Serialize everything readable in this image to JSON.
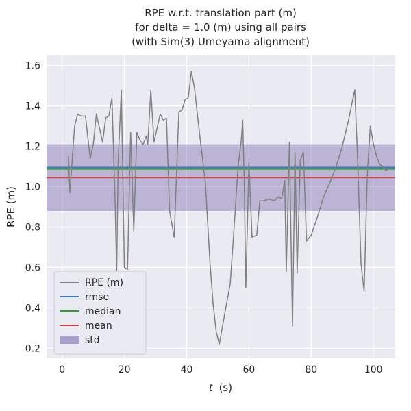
{
  "chart_data": {
    "type": "line",
    "title": "RPE w.r.t. translation part (m)\nfor delta = 1.0 (m) using all pairs\n(with Sim(3) Umeyama alignment)",
    "title_lines": [
      "RPE w.r.t. translation part (m)",
      "for delta = 1.0 (m) using all pairs",
      "(with Sim(3) Umeyama alignment)"
    ],
    "xlabel": "t (s)",
    "xlabel_parts": {
      "italic": "t",
      "rest": "(s)"
    },
    "ylabel": "RPE (m)",
    "xlim": [
      -5,
      107
    ],
    "ylim": [
      0.15,
      1.65
    ],
    "xticks": [
      0,
      20,
      40,
      60,
      80,
      100
    ],
    "yticks": [
      0.2,
      0.4,
      0.6,
      0.8,
      1.0,
      1.2,
      1.4,
      1.6
    ],
    "grid": true,
    "legend_position": "lower left",
    "colors": {
      "axes_bg": "#eaeaf2",
      "grid": "#ffffff",
      "text": "#262626"
    },
    "series": [
      {
        "name": "RPE (m)",
        "color": "#808080",
        "points": [
          [
            2.0,
            1.15
          ],
          [
            2.5,
            0.97
          ],
          [
            4,
            1.3
          ],
          [
            5,
            1.36
          ],
          [
            6,
            1.35
          ],
          [
            7.5,
            1.35
          ],
          [
            9,
            1.14
          ],
          [
            10,
            1.21
          ],
          [
            11,
            1.36
          ],
          [
            12,
            1.29
          ],
          [
            13,
            1.22
          ],
          [
            14,
            1.34
          ],
          [
            15,
            1.35
          ],
          [
            16,
            1.44
          ],
          [
            17,
            0.94
          ],
          [
            17.5,
            0.57
          ],
          [
            18,
            1.12
          ],
          [
            19,
            1.48
          ],
          [
            20,
            0.6
          ],
          [
            21,
            0.59
          ],
          [
            22,
            1.27
          ],
          [
            23,
            0.78
          ],
          [
            24,
            1.27
          ],
          [
            25,
            1.23
          ],
          [
            26,
            1.21
          ],
          [
            27,
            1.25
          ],
          [
            27.5,
            1.21
          ],
          [
            28.5,
            1.48
          ],
          [
            29.5,
            1.22
          ],
          [
            30.5,
            1.29
          ],
          [
            31.5,
            1.36
          ],
          [
            32.5,
            1.33
          ],
          [
            33.5,
            1.34
          ],
          [
            34.5,
            0.88
          ],
          [
            36,
            0.75
          ],
          [
            37.5,
            1.37
          ],
          [
            38.5,
            1.38
          ],
          [
            39.5,
            1.43
          ],
          [
            40.5,
            1.44
          ],
          [
            41.5,
            1.57
          ],
          [
            42.5,
            1.49
          ],
          [
            44,
            1.28
          ],
          [
            46,
            1.02
          ],
          [
            47.5,
            0.62
          ],
          [
            48.5,
            0.42
          ],
          [
            49.5,
            0.28
          ],
          [
            50.5,
            0.22
          ],
          [
            52,
            0.35
          ],
          [
            54,
            0.52
          ],
          [
            55.5,
            0.86
          ],
          [
            56.5,
            1.1
          ],
          [
            57.5,
            1.22
          ],
          [
            58,
            1.33
          ],
          [
            58.5,
            1.02
          ],
          [
            59,
            0.5
          ],
          [
            60,
            1.12
          ],
          [
            61,
            0.75
          ],
          [
            62.5,
            0.76
          ],
          [
            63.5,
            0.93
          ],
          [
            65,
            0.93
          ],
          [
            66.5,
            0.94
          ],
          [
            68,
            0.93
          ],
          [
            69.5,
            0.95
          ],
          [
            70.5,
            0.94
          ],
          [
            71.5,
            1.03
          ],
          [
            72,
            0.58
          ],
          [
            73,
            1.22
          ],
          [
            74,
            0.31
          ],
          [
            74.8,
            1.17
          ],
          [
            75.5,
            0.57
          ],
          [
            76.5,
            1.13
          ],
          [
            77.5,
            1.17
          ],
          [
            78.5,
            0.73
          ],
          [
            80,
            0.76
          ],
          [
            82,
            0.85
          ],
          [
            84,
            0.95
          ],
          [
            86,
            1.02
          ],
          [
            88,
            1.1
          ],
          [
            90,
            1.2
          ],
          [
            92,
            1.33
          ],
          [
            94,
            1.48
          ],
          [
            95,
            1.1
          ],
          [
            96,
            0.62
          ],
          [
            97,
            0.48
          ],
          [
            98,
            1.05
          ],
          [
            99,
            1.3
          ],
          [
            100,
            1.21
          ],
          [
            101,
            1.15
          ],
          [
            102,
            1.11
          ],
          [
            103,
            1.1
          ],
          [
            104,
            1.08
          ],
          [
            105,
            1.09
          ]
        ]
      }
    ],
    "stat_lines": [
      {
        "name": "rmse",
        "color": "#3d76c2",
        "value": 1.095
      },
      {
        "name": "median",
        "color": "#33a02c",
        "value": 1.088
      },
      {
        "name": "mean",
        "color": "#d43f3f",
        "value": 1.045
      }
    ],
    "std_band": {
      "name": "std",
      "color": "#7a68ae",
      "opacity": 0.42,
      "lower": 0.88,
      "upper": 1.21
    }
  },
  "legend": {
    "items": [
      "RPE (m)",
      "rmse",
      "median",
      "mean",
      "std"
    ]
  }
}
